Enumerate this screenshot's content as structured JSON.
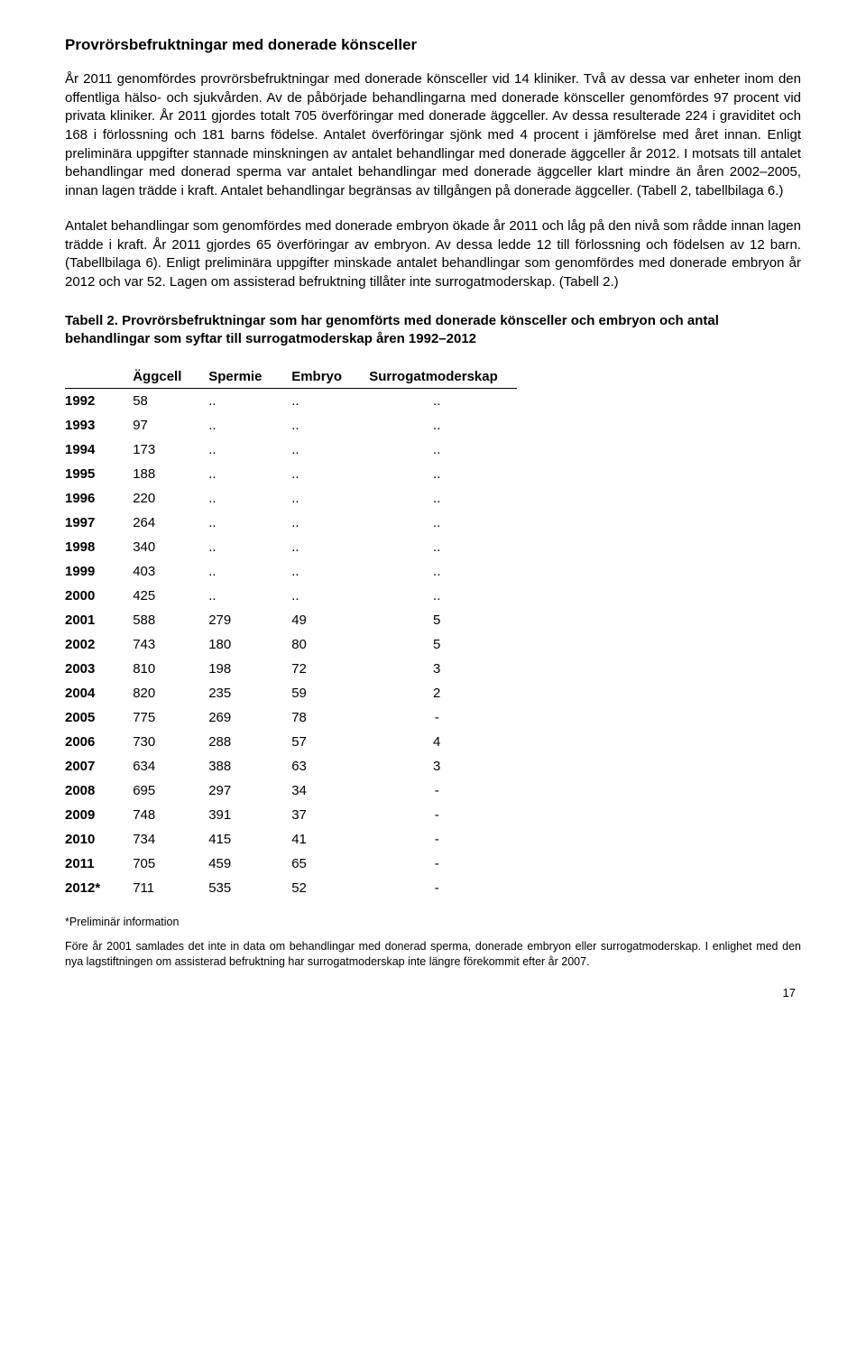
{
  "heading": "Provrörsbefruktningar med donerade könsceller",
  "para1": "År 2011 genomfördes provrörsbefruktningar med donerade könsceller vid 14 kliniker. Två av dessa var enheter inom den offentliga hälso- och sjukvården. Av de påbörjade behandlingarna med donerade könsceller genomfördes 97 procent vid privata kliniker. År 2011 gjordes totalt 705 överföringar med donerade äggceller. Av dessa resulterade 224 i graviditet och 168 i förlossning och 181 barns födelse. Antalet överföringar sjönk med 4 procent i jämförelse med året innan. Enligt preliminära uppgifter stannade minskningen av antalet behandlingar med donerade äggceller år 2012. I motsats till antalet behandlingar med donerad sperma var antalet behandlingar med donerade äggceller klart mindre än åren 2002–2005, innan lagen trädde i kraft. Antalet behandlingar begränsas av tillgången på donerade äggceller. (Tabell 2, tabellbilaga 6.)",
  "para2": "Antalet behandlingar som genomfördes med donerade embryon ökade år 2011 och låg på den nivå som rådde innan lagen trädde i kraft. År 2011 gjordes 65 överföringar av embryon. Av dessa ledde 12 till förlossning och födelsen av 12 barn. (Tabellbilaga 6). Enligt preliminära uppgifter minskade antalet behandlingar som genomfördes med donerade embryon år 2012 och var 52. Lagen om assisterad befruktning tillåter inte surrogatmoderskap. (Tabell 2.)",
  "tableTitle": "Tabell 2. Provrörsbefruktningar som har genomförts med donerade könsceller och embryon och antal behandlingar som syftar till surrogatmoderskap åren 1992–2012",
  "table": {
    "headers": [
      "",
      "Äggcell",
      "Spermie",
      "Embryo",
      "Surrogatmoderskap"
    ],
    "rows": [
      [
        "1992",
        "58",
        "..",
        "..",
        ".."
      ],
      [
        "1993",
        "97",
        "..",
        "..",
        ".."
      ],
      [
        "1994",
        "173",
        "..",
        "..",
        ".."
      ],
      [
        "1995",
        "188",
        "..",
        "..",
        ".."
      ],
      [
        "1996",
        "220",
        "..",
        "..",
        ".."
      ],
      [
        "1997",
        "264",
        "..",
        "..",
        ".."
      ],
      [
        "1998",
        "340",
        "..",
        "..",
        ".."
      ],
      [
        "1999",
        "403",
        "..",
        "..",
        ".."
      ],
      [
        "2000",
        "425",
        "..",
        "..",
        ".."
      ],
      [
        "2001",
        "588",
        "279",
        "49",
        "5"
      ],
      [
        "2002",
        "743",
        "180",
        "80",
        "5"
      ],
      [
        "2003",
        "810",
        "198",
        "72",
        "3"
      ],
      [
        "2004",
        "820",
        "235",
        "59",
        "2"
      ],
      [
        "2005",
        "775",
        "269",
        "78",
        "-"
      ],
      [
        "2006",
        "730",
        "288",
        "57",
        "4"
      ],
      [
        "2007",
        "634",
        "388",
        "63",
        "3"
      ],
      [
        "2008",
        "695",
        "297",
        "34",
        "-"
      ],
      [
        "2009",
        "748",
        "391",
        "37",
        "-"
      ],
      [
        "2010",
        "734",
        "415",
        "41",
        "-"
      ],
      [
        "2011",
        "705",
        "459",
        "65",
        "-"
      ],
      [
        "2012*",
        "711",
        "535",
        "52",
        "-"
      ]
    ]
  },
  "footnote1": "*Preliminär information",
  "footnote2": "Före år 2001 samlades det inte in data om behandlingar med donerad sperma, donerade embryon eller surrogatmoderskap. I enlighet med den nya lagstiftningen om assisterad befruktning har surrogatmoderskap inte längre förekommit efter år 2007.",
  "pageNum": "17"
}
